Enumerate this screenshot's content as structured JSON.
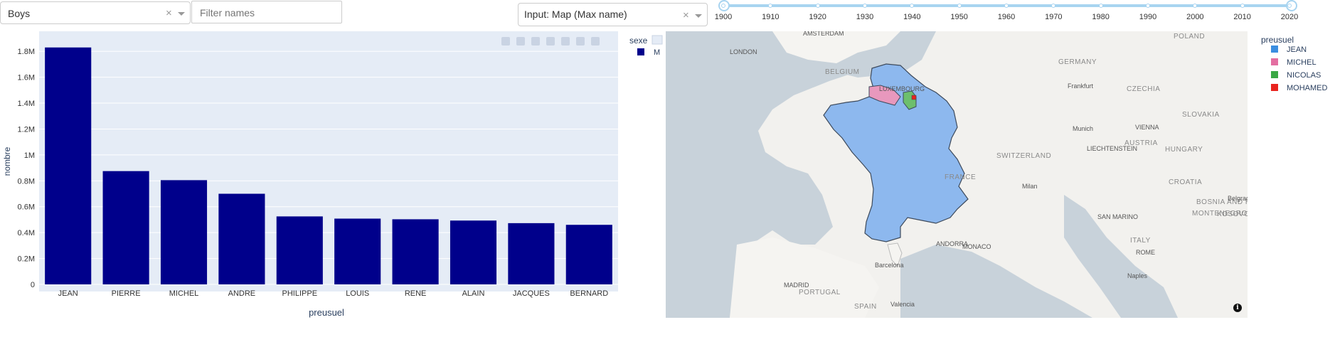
{
  "controls": {
    "gender_dropdown": {
      "value": "Boys",
      "clear": "×"
    },
    "filter_input": {
      "placeholder": "Filter names"
    },
    "mode_dropdown": {
      "value": "Input: Map (Max name)",
      "clear": "×"
    },
    "year_slider": {
      "marks": [
        "1900",
        "1910",
        "1920",
        "1930",
        "1940",
        "1950",
        "1960",
        "1970",
        "1980",
        "1990",
        "2000",
        "2010",
        "2020"
      ],
      "range": [
        1900,
        2020
      ]
    }
  },
  "bar_chart": {
    "legend": {
      "title": "sexe",
      "items": [
        {
          "label": "M",
          "color": "#00008b"
        }
      ]
    }
  },
  "chart_data": {
    "type": "bar",
    "categories": [
      "JEAN",
      "PIERRE",
      "MICHEL",
      "ANDRE",
      "PHILIPPE",
      "LOUIS",
      "RENE",
      "ALAIN",
      "JACQUES",
      "BERNARD"
    ],
    "values": [
      1830000,
      875000,
      805000,
      700000,
      525000,
      508000,
      503000,
      493000,
      473000,
      460000
    ],
    "series": [
      {
        "name": "M",
        "values": [
          1830000,
          875000,
          805000,
          700000,
          525000,
          508000,
          503000,
          493000,
          473000,
          460000
        ]
      }
    ],
    "xlabel": "preusuel",
    "ylabel": "nombre",
    "ylim": [
      0,
      1900000
    ],
    "yticks": [
      0,
      200000,
      400000,
      600000,
      800000,
      1000000,
      1200000,
      1400000,
      1600000,
      1800000
    ],
    "ytick_labels": [
      "0",
      "0.2M",
      "0.4M",
      "0.6M",
      "0.8M",
      "1M",
      "1.2M",
      "1.4M",
      "1.6M",
      "1.8M"
    ],
    "bar_color": "#00008b",
    "plot_bg": "#e5ecf6",
    "grid": true
  },
  "map": {
    "legend": {
      "title": "preusuel",
      "items": [
        {
          "label": "JEAN",
          "color": "#3b8ee0"
        },
        {
          "label": "MICHEL",
          "color": "#e36ea1"
        },
        {
          "label": "NICOLAS",
          "color": "#3aa845"
        },
        {
          "label": "MOHAMED",
          "color": "#e8231e"
        }
      ]
    },
    "fill_color": "#8db8ee",
    "labels": [
      {
        "name": "AMSTERDAM",
        "country": false
      },
      {
        "name": "LONDON",
        "country": false
      },
      {
        "name": "BELGIUM",
        "country": true
      },
      {
        "name": "GERMANY",
        "country": true
      },
      {
        "name": "POLAND",
        "country": true
      },
      {
        "name": "LUXEMBOURG",
        "country": false
      },
      {
        "name": "Frankfurt",
        "country": false
      },
      {
        "name": "CZECHIA",
        "country": true
      },
      {
        "name": "Munich",
        "country": false
      },
      {
        "name": "VIENNA",
        "country": false
      },
      {
        "name": "SLOVAKIA",
        "country": true
      },
      {
        "name": "AUSTRIA",
        "country": true
      },
      {
        "name": "LIECHTENSTEIN",
        "country": false
      },
      {
        "name": "SWITZERLAND",
        "country": true
      },
      {
        "name": "HUNGARY",
        "country": true
      },
      {
        "name": "Milan",
        "country": false
      },
      {
        "name": "CROATIA",
        "country": true
      },
      {
        "name": "BOSNIA AND HERZEGOVINA",
        "country": true
      },
      {
        "name": "Belgrade",
        "country": false
      },
      {
        "name": "MONTENEGRO",
        "country": true
      },
      {
        "name": "KOSOVO",
        "country": true
      },
      {
        "name": "SAN MARINO",
        "country": false
      },
      {
        "name": "ITALY",
        "country": true
      },
      {
        "name": "ROME",
        "country": false
      },
      {
        "name": "Naples",
        "country": false
      },
      {
        "name": "PORTUGAL",
        "country": true
      },
      {
        "name": "MADRID",
        "country": false
      },
      {
        "name": "SPAIN",
        "country": true
      },
      {
        "name": "Barcelona",
        "country": false
      },
      {
        "name": "Valencia",
        "country": false
      },
      {
        "name": "ANDORRA",
        "country": false
      },
      {
        "name": "MONACO",
        "country": false
      },
      {
        "name": "FRANCE",
        "country": true
      }
    ]
  }
}
